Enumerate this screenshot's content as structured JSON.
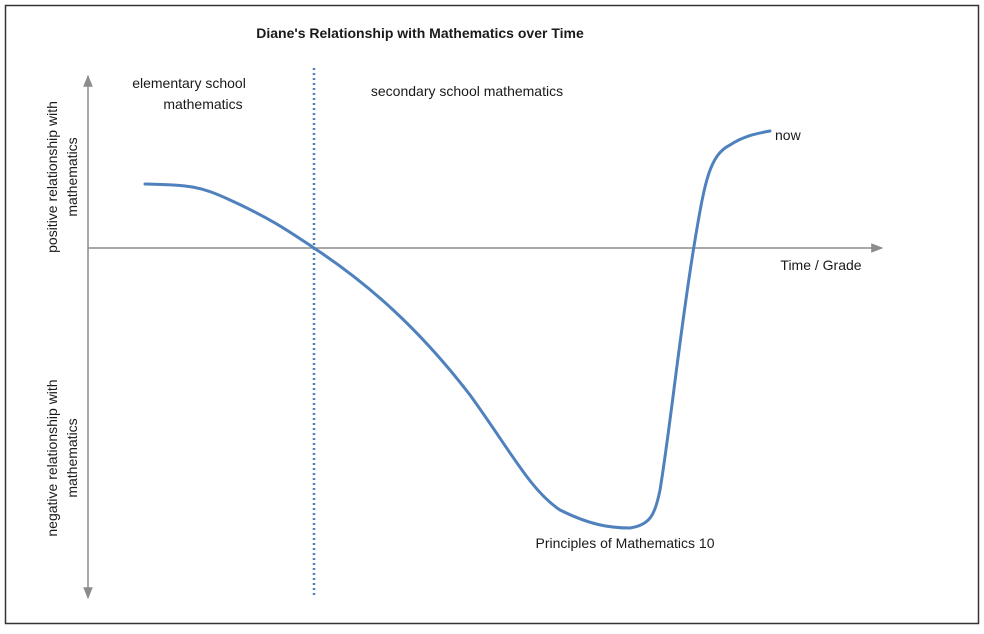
{
  "title": "Diane's Relationship with Mathematics over Time",
  "axes": {
    "x_label": "Time / Grade",
    "y_positive_label": [
      "positive relationship with",
      "mathematics"
    ],
    "y_negative_label": [
      "negative relationship with",
      "mathematics"
    ]
  },
  "regions": [
    {
      "label": [
        "elementary school",
        "mathematics"
      ]
    },
    {
      "label": [
        "secondary school mathematics"
      ]
    }
  ],
  "annotations": [
    "now",
    "Principles of Mathematics 10"
  ]
}
